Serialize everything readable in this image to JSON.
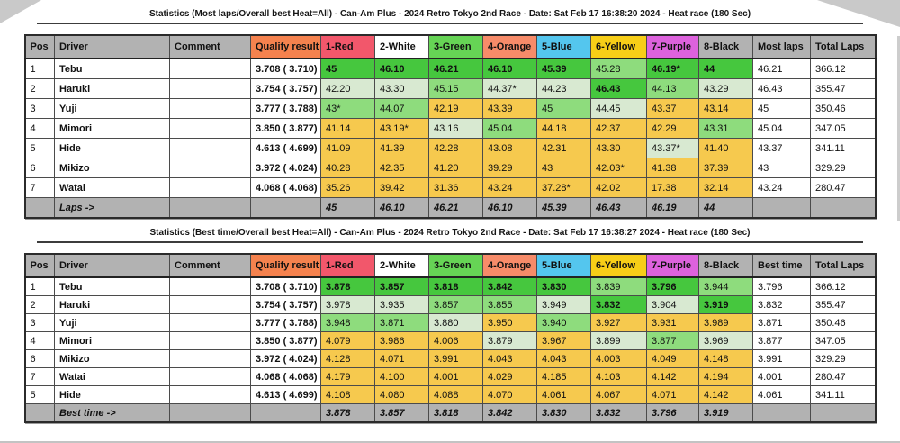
{
  "palette": {
    "header_gray": "#b2b2b2",
    "qualify_orange": "#f5824e",
    "heat_red": "#f2576b",
    "heat_white": "#ffffff",
    "heat_green": "#66d455",
    "heat_salmon": "#f78b69",
    "heat_blue": "#54c6ee",
    "heat_yellow": "#f7ce17",
    "heat_purple": "#dd62dd",
    "rank1_green": "#46c73e",
    "rank2_green": "#8edc7d",
    "rank3_green": "#d8e9d1",
    "other_yellow": "#f6c94e"
  },
  "tables": [
    {
      "title": "Statistics (Most laps/Overall best Heat=All) - Can-Am Plus - 2024 Retro Tokyo 2nd Race - Date: Sat Feb 17 16:38:20 2024 - Heat race (180 Sec)",
      "columns": [
        {
          "label": "Pos",
          "color": "gray"
        },
        {
          "label": "Driver",
          "color": "gray"
        },
        {
          "label": "Comment",
          "color": "gray"
        },
        {
          "label": "Qualify result",
          "color": "orange"
        },
        {
          "label": "1-Red",
          "color": "red"
        },
        {
          "label": "2-White",
          "color": "white"
        },
        {
          "label": "3-Green",
          "color": "green"
        },
        {
          "label": "4-Orange",
          "color": "salmon"
        },
        {
          "label": "5-Blue",
          "color": "blue"
        },
        {
          "label": "6-Yellow",
          "color": "yellow"
        },
        {
          "label": "7-Purple",
          "color": "purple"
        },
        {
          "label": "8-Black",
          "color": "gray"
        },
        {
          "label": "Most laps",
          "color": "gray"
        },
        {
          "label": "Total Laps",
          "color": "gray"
        }
      ],
      "rows": [
        {
          "pos": "1",
          "driver": "Tebu",
          "comment": "",
          "qualify": "3.708 ( 3.710)",
          "heats": [
            [
              "45",
              1
            ],
            [
              "46.10",
              1
            ],
            [
              "46.21",
              1
            ],
            [
              "46.10",
              1
            ],
            [
              "45.39",
              1
            ],
            [
              "45.28",
              2
            ],
            [
              "46.19*",
              1
            ],
            [
              "44",
              1
            ]
          ],
          "summary": "46.21",
          "total": "366.12"
        },
        {
          "pos": "2",
          "driver": "Haruki",
          "comment": "",
          "qualify": "3.754 ( 3.757)",
          "heats": [
            [
              "42.20",
              3
            ],
            [
              "43.30",
              3
            ],
            [
              "45.15",
              2
            ],
            [
              "44.37*",
              3
            ],
            [
              "44.23",
              3
            ],
            [
              "46.43",
              1
            ],
            [
              "44.13",
              2
            ],
            [
              "43.29",
              3
            ]
          ],
          "summary": "46.43",
          "total": "355.47"
        },
        {
          "pos": "3",
          "driver": "Yuji",
          "comment": "",
          "qualify": "3.777 ( 3.788)",
          "heats": [
            [
              "43*",
              2
            ],
            [
              "44.07",
              2
            ],
            [
              "42.19",
              0
            ],
            [
              "43.39",
              0
            ],
            [
              "45",
              2
            ],
            [
              "44.45",
              3
            ],
            [
              "43.37",
              0
            ],
            [
              "43.14",
              0
            ]
          ],
          "summary": "45",
          "total": "350.46"
        },
        {
          "pos": "4",
          "driver": "Mimori",
          "comment": "",
          "qualify": "3.850 ( 3.877)",
          "heats": [
            [
              "41.14",
              0
            ],
            [
              "43.19*",
              0
            ],
            [
              "43.16",
              3
            ],
            [
              "45.04",
              2
            ],
            [
              "44.18",
              0
            ],
            [
              "42.37",
              0
            ],
            [
              "42.29",
              0
            ],
            [
              "43.31",
              2
            ]
          ],
          "summary": "45.04",
          "total": "347.05"
        },
        {
          "pos": "5",
          "driver": "Hide",
          "comment": "",
          "qualify": "4.613 ( 4.699)",
          "heats": [
            [
              "41.09",
              0
            ],
            [
              "41.39",
              0
            ],
            [
              "42.28",
              0
            ],
            [
              "43.08",
              0
            ],
            [
              "42.31",
              0
            ],
            [
              "43.30",
              0
            ],
            [
              "43.37*",
              3
            ],
            [
              "41.40",
              0
            ]
          ],
          "summary": "43.37",
          "total": "341.11"
        },
        {
          "pos": "6",
          "driver": "Mikizo",
          "comment": "",
          "qualify": "3.972 ( 4.024)",
          "heats": [
            [
              "40.28",
              0
            ],
            [
              "42.35",
              0
            ],
            [
              "41.20",
              0
            ],
            [
              "39.29",
              0
            ],
            [
              "43",
              0
            ],
            [
              "42.03*",
              0
            ],
            [
              "41.38",
              0
            ],
            [
              "37.39",
              0
            ]
          ],
          "summary": "43",
          "total": "329.29"
        },
        {
          "pos": "7",
          "driver": "Watai",
          "comment": "",
          "qualify": "4.068 ( 4.068)",
          "heats": [
            [
              "35.26",
              0
            ],
            [
              "39.42",
              0
            ],
            [
              "31.36",
              0
            ],
            [
              "43.24",
              0
            ],
            [
              "37.28*",
              0
            ],
            [
              "42.02",
              0
            ],
            [
              "17.38",
              0
            ],
            [
              "32.14",
              0
            ]
          ],
          "summary": "43.24",
          "total": "280.47"
        }
      ],
      "footer": {
        "label": "Laps ->",
        "values": [
          "45",
          "46.10",
          "46.21",
          "46.10",
          "45.39",
          "46.43",
          "46.19",
          "44"
        ]
      }
    },
    {
      "title": "Statistics (Best time/Overall best Heat=All) - Can-Am Plus - 2024 Retro Tokyo 2nd Race - Date: Sat Feb 17 16:38:27 2024 - Heat race (180 Sec)",
      "columns": [
        {
          "label": "Pos",
          "color": "gray"
        },
        {
          "label": "Driver",
          "color": "gray"
        },
        {
          "label": "Comment",
          "color": "gray"
        },
        {
          "label": "Qualify result",
          "color": "orange"
        },
        {
          "label": "1-Red",
          "color": "red"
        },
        {
          "label": "2-White",
          "color": "white"
        },
        {
          "label": "3-Green",
          "color": "green"
        },
        {
          "label": "4-Orange",
          "color": "salmon"
        },
        {
          "label": "5-Blue",
          "color": "blue"
        },
        {
          "label": "6-Yellow",
          "color": "yellow"
        },
        {
          "label": "7-Purple",
          "color": "purple"
        },
        {
          "label": "8-Black",
          "color": "gray"
        },
        {
          "label": "Best time",
          "color": "gray"
        },
        {
          "label": "Total Laps",
          "color": "gray"
        }
      ],
      "rows": [
        {
          "pos": "1",
          "driver": "Tebu",
          "comment": "",
          "qualify": "3.708 ( 3.710)",
          "heats": [
            [
              "3.878",
              1
            ],
            [
              "3.857",
              1
            ],
            [
              "3.818",
              1
            ],
            [
              "3.842",
              1
            ],
            [
              "3.830",
              1
            ],
            [
              "3.839",
              2
            ],
            [
              "3.796",
              1
            ],
            [
              "3.944",
              2
            ]
          ],
          "summary": "3.796",
          "total": "366.12"
        },
        {
          "pos": "2",
          "driver": "Haruki",
          "comment": "",
          "qualify": "3.754 ( 3.757)",
          "heats": [
            [
              "3.978",
              3
            ],
            [
              "3.935",
              3
            ],
            [
              "3.857",
              2
            ],
            [
              "3.855",
              2
            ],
            [
              "3.949",
              3
            ],
            [
              "3.832",
              1
            ],
            [
              "3.904",
              3
            ],
            [
              "3.919",
              1
            ]
          ],
          "summary": "3.832",
          "total": "355.47"
        },
        {
          "pos": "3",
          "driver": "Yuji",
          "comment": "",
          "qualify": "3.777 ( 3.788)",
          "heats": [
            [
              "3.948",
              2
            ],
            [
              "3.871",
              2
            ],
            [
              "3.880",
              3
            ],
            [
              "3.950",
              0
            ],
            [
              "3.940",
              2
            ],
            [
              "3.927",
              0
            ],
            [
              "3.931",
              0
            ],
            [
              "3.989",
              0
            ]
          ],
          "summary": "3.871",
          "total": "350.46"
        },
        {
          "pos": "4",
          "driver": "Mimori",
          "comment": "",
          "qualify": "3.850 ( 3.877)",
          "heats": [
            [
              "4.079",
              0
            ],
            [
              "3.986",
              0
            ],
            [
              "4.006",
              0
            ],
            [
              "3.879",
              3
            ],
            [
              "3.967",
              0
            ],
            [
              "3.899",
              3
            ],
            [
              "3.877",
              2
            ],
            [
              "3.969",
              3
            ]
          ],
          "summary": "3.877",
          "total": "347.05"
        },
        {
          "pos": "6",
          "driver": "Mikizo",
          "comment": "",
          "qualify": "3.972 ( 4.024)",
          "heats": [
            [
              "4.128",
              0
            ],
            [
              "4.071",
              0
            ],
            [
              "3.991",
              0
            ],
            [
              "4.043",
              0
            ],
            [
              "4.043",
              0
            ],
            [
              "4.003",
              0
            ],
            [
              "4.049",
              0
            ],
            [
              "4.148",
              0
            ]
          ],
          "summary": "3.991",
          "total": "329.29"
        },
        {
          "pos": "7",
          "driver": "Watai",
          "comment": "",
          "qualify": "4.068 ( 4.068)",
          "heats": [
            [
              "4.179",
              0
            ],
            [
              "4.100",
              0
            ],
            [
              "4.001",
              0
            ],
            [
              "4.029",
              0
            ],
            [
              "4.185",
              0
            ],
            [
              "4.103",
              0
            ],
            [
              "4.142",
              0
            ],
            [
              "4.194",
              0
            ]
          ],
          "summary": "4.001",
          "total": "280.47"
        },
        {
          "pos": "5",
          "driver": "Hide",
          "comment": "",
          "qualify": "4.613 ( 4.699)",
          "heats": [
            [
              "4.108",
              0
            ],
            [
              "4.080",
              0
            ],
            [
              "4.088",
              0
            ],
            [
              "4.070",
              0
            ],
            [
              "4.061",
              0
            ],
            [
              "4.067",
              0
            ],
            [
              "4.071",
              0
            ],
            [
              "4.142",
              0
            ]
          ],
          "summary": "4.061",
          "total": "341.11"
        }
      ],
      "footer": {
        "label": "Best time ->",
        "values": [
          "3.878",
          "3.857",
          "3.818",
          "3.842",
          "3.830",
          "3.832",
          "3.796",
          "3.919"
        ]
      }
    }
  ]
}
